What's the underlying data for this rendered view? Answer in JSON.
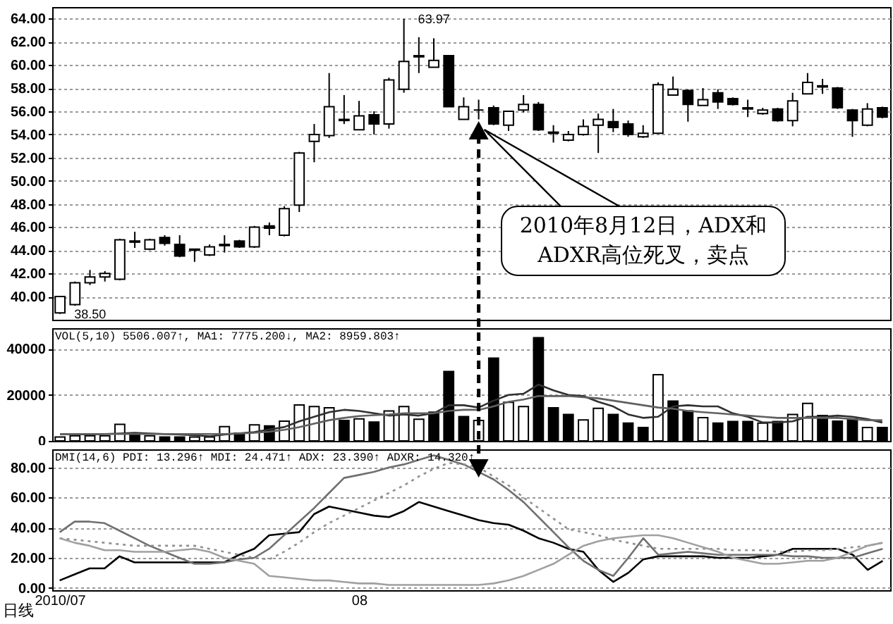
{
  "chart_data": [
    {
      "type": "candlestick",
      "categories": [
        "2010/07",
        null,
        null,
        null,
        null,
        null,
        null,
        null,
        null,
        null,
        null,
        null,
        null,
        null,
        null,
        null,
        null,
        null,
        null,
        null,
        "08",
        null,
        null,
        null,
        null,
        null,
        null,
        null,
        null,
        null,
        null,
        null,
        null,
        null,
        null,
        null,
        null,
        null,
        null,
        null,
        null,
        null,
        null,
        null,
        null,
        null,
        null,
        null,
        null,
        null,
        null,
        null,
        null,
        null,
        null,
        null
      ],
      "ohlc": [
        [
          38.6,
          40.0,
          38.5,
          40.0
        ],
        [
          39.3,
          41.3,
          39.2,
          41.2
        ],
        [
          41.2,
          42.3,
          41.0,
          41.7
        ],
        [
          41.7,
          42.2,
          41.3,
          42.0
        ],
        [
          41.5,
          45.0,
          41.4,
          44.9
        ],
        [
          44.7,
          45.6,
          44.2,
          44.8
        ],
        [
          44.1,
          45.0,
          44.0,
          44.9
        ],
        [
          45.1,
          45.3,
          44.4,
          44.6
        ],
        [
          44.5,
          45.3,
          43.4,
          43.5
        ],
        [
          44.0,
          44.1,
          43.0,
          44.1
        ],
        [
          43.6,
          44.5,
          43.5,
          44.3
        ],
        [
          44.4,
          45.3,
          43.8,
          44.5
        ],
        [
          44.8,
          44.9,
          44.2,
          44.3
        ],
        [
          44.3,
          46.1,
          44.2,
          46.0
        ],
        [
          46.1,
          46.4,
          45.3,
          45.9
        ],
        [
          45.3,
          47.8,
          45.2,
          47.6
        ],
        [
          47.9,
          52.5,
          47.3,
          52.4
        ],
        [
          53.4,
          54.9,
          51.6,
          54.0
        ],
        [
          53.9,
          59.3,
          53.7,
          56.4
        ],
        [
          55.2,
          57.4,
          54.9,
          55.3
        ],
        [
          54.4,
          56.9,
          54.4,
          55.6
        ],
        [
          55.7,
          56.0,
          54.0,
          54.9
        ],
        [
          54.9,
          58.9,
          54.5,
          58.7
        ],
        [
          57.9,
          63.97,
          57.6,
          60.3
        ],
        [
          60.7,
          62.4,
          59.3,
          60.8
        ],
        [
          59.8,
          62.3,
          59.8,
          60.4
        ],
        [
          60.8,
          60.8,
          56.4,
          56.4
        ],
        [
          55.3,
          57.2,
          55.3,
          56.4
        ],
        [
          56.1,
          57.0,
          55.3,
          56.1
        ],
        [
          56.3,
          56.5,
          54.8,
          54.9
        ],
        [
          54.8,
          56.0,
          54.3,
          56.0
        ],
        [
          56.1,
          57.4,
          55.9,
          56.6
        ],
        [
          56.6,
          56.8,
          54.3,
          54.4
        ],
        [
          54.1,
          54.8,
          53.3,
          54.2
        ],
        [
          53.5,
          54.3,
          53.4,
          54.0
        ],
        [
          54.0,
          55.3,
          53.9,
          54.7
        ],
        [
          54.8,
          55.8,
          52.4,
          55.3
        ],
        [
          55.1,
          56.2,
          54.2,
          54.6
        ],
        [
          54.9,
          55.2,
          53.8,
          54.0
        ],
        [
          53.8,
          54.8,
          53.7,
          54.1
        ],
        [
          54.1,
          58.5,
          54.1,
          58.3
        ],
        [
          57.4,
          59.0,
          57.4,
          57.9
        ],
        [
          57.8,
          57.9,
          55.1,
          56.6
        ],
        [
          56.5,
          58.0,
          56.5,
          57.0
        ],
        [
          57.6,
          57.9,
          56.2,
          56.8
        ],
        [
          57.1,
          57.2,
          56.5,
          56.6
        ],
        [
          56.2,
          57.0,
          55.5,
          56.3
        ],
        [
          55.8,
          56.3,
          55.7,
          56.1
        ],
        [
          56.2,
          56.3,
          55.1,
          55.2
        ],
        [
          55.2,
          57.6,
          54.7,
          56.9
        ],
        [
          57.5,
          59.3,
          57.5,
          58.5
        ],
        [
          58.1,
          58.8,
          57.5,
          58.2
        ],
        [
          58.0,
          58.1,
          56.2,
          56.3
        ],
        [
          56.1,
          56.2,
          53.8,
          55.2
        ],
        [
          54.8,
          56.7,
          54.7,
          56.2
        ],
        [
          56.3,
          56.4,
          55.4,
          55.5
        ]
      ],
      "color": "#000000",
      "ylim": [
        38,
        65
      ],
      "yticks": [
        {
          "value": 40,
          "label": "40.00"
        },
        {
          "value": 42,
          "label": "42.00"
        },
        {
          "value": 44,
          "label": "44.00"
        },
        {
          "value": 46,
          "label": "46.00"
        },
        {
          "value": 48,
          "label": "48.00"
        },
        {
          "value": 50,
          "label": "50.00"
        },
        {
          "value": 52,
          "label": "52.00"
        },
        {
          "value": 54,
          "label": "54.00"
        },
        {
          "value": 56,
          "label": "56.00"
        },
        {
          "value": 58,
          "label": "58.00"
        },
        {
          "value": 60,
          "label": "60.00"
        },
        {
          "value": 62,
          "label": "62.00"
        },
        {
          "value": 64,
          "label": "64.00"
        }
      ],
      "grid": "y",
      "tick_labels": "y",
      "annotations": [
        "63.97",
        "38.50",
        "2010年8月12日，ADX和ADXR高位死叉，卖点"
      ]
    },
    {
      "type": "bar",
      "categories": [
        "2010/07",
        null,
        null,
        null,
        null,
        null,
        null,
        null,
        null,
        null,
        null,
        null,
        null,
        null,
        null,
        null,
        null,
        null,
        null,
        null,
        "08",
        null,
        null,
        null,
        null,
        null,
        null,
        null,
        null,
        null,
        null,
        null,
        null,
        null,
        null,
        null,
        null,
        null,
        null,
        null,
        null,
        null,
        null,
        null,
        null,
        null,
        null,
        null,
        null,
        null,
        null,
        null,
        null,
        null,
        null,
        null
      ],
      "series": [
        {
          "type": "bar",
          "values": [
            1700,
            2200,
            2200,
            2200,
            7200,
            3400,
            2200,
            1700,
            1700,
            1700,
            1700,
            6200,
            3400,
            7000,
            6500,
            8600,
            15600,
            14900,
            14400,
            8900,
            9600,
            8200,
            13000,
            14900,
            9400,
            12500,
            30200,
            10600,
            8900,
            36000,
            16800,
            14900,
            44900,
            14400,
            11500,
            9100,
            14200,
            11500,
            7700,
            5800,
            28800,
            17300,
            13000,
            10100,
            7700,
            8400,
            8400,
            7700,
            8400,
            11500,
            16300,
            11000,
            8600,
            9600,
            5800,
            5800
          ],
          "colors": [
            "#ffffff",
            "#ffffff",
            "#ffffff",
            "#ffffff",
            "#ffffff",
            "#000000",
            "#ffffff",
            "#000000",
            "#000000",
            "#ffffff",
            "#ffffff",
            "#ffffff",
            "#000000",
            "#ffffff",
            "#000000",
            "#ffffff",
            "#ffffff",
            "#ffffff",
            "#ffffff",
            "#000000",
            "#ffffff",
            "#000000",
            "#ffffff",
            "#ffffff",
            "#ffffff",
            "#000000",
            "#000000",
            "#000000",
            "#ffffff",
            "#000000",
            "#ffffff",
            "#ffffff",
            "#000000",
            "#000000",
            "#000000",
            "#ffffff",
            "#ffffff",
            "#000000",
            "#000000",
            "#000000",
            "#ffffff",
            "#000000",
            "#000000",
            "#ffffff",
            "#000000",
            "#000000",
            "#000000",
            "#ffffff",
            "#000000",
            "#ffffff",
            "#ffffff",
            "#000000",
            "#000000",
            "#000000",
            "#ffffff",
            "#000000"
          ]
        },
        {
          "type": "line",
          "color": "#303030",
          "values": [
            2900,
            2900,
            2800,
            3000,
            3200,
            3500,
            3200,
            3000,
            2800,
            2500,
            2000,
            2800,
            3300,
            3800,
            5000,
            6000,
            8500,
            10500,
            12500,
            13500,
            13000,
            12000,
            11000,
            11500,
            11000,
            12000,
            15500,
            15500,
            14500,
            17500,
            20000,
            20500,
            24500,
            22000,
            20000,
            19500,
            17000,
            15000,
            11500,
            10000,
            10500,
            15000,
            15500,
            15000,
            15000,
            12000,
            10500,
            8000,
            8000,
            8500,
            10500,
            10500,
            11000,
            10500,
            9500,
            8000
          ]
        },
        {
          "type": "line",
          "color": "#606060",
          "values": [
            3000,
            3000,
            3000,
            3000,
            3000,
            3000,
            3000,
            3000,
            3000,
            3000,
            3000,
            3000,
            3200,
            3500,
            4000,
            4800,
            6000,
            7500,
            9000,
            10000,
            10800,
            11200,
            11500,
            12000,
            12000,
            12000,
            13000,
            13500,
            13500,
            15000,
            17000,
            18000,
            19500,
            19500,
            19500,
            19000,
            18500,
            17500,
            16500,
            15500,
            14500,
            14000,
            13000,
            12500,
            12000,
            11500,
            11000,
            10500,
            10000,
            10000,
            10000,
            10000,
            10000,
            9500,
            9000,
            9000
          ]
        }
      ],
      "ylim": [
        0,
        49000
      ],
      "yticks": [
        0,
        20000,
        40000
      ],
      "grid": "y",
      "tick_labels": "y",
      "annotations": [
        "VOL(5,10) 5506.007↑, MA1: 7775.200↓, MA2: 8959.803↑"
      ]
    },
    {
      "type": "line",
      "categories": [
        "2010/07",
        null,
        null,
        null,
        null,
        null,
        null,
        null,
        null,
        null,
        null,
        null,
        null,
        null,
        null,
        null,
        null,
        null,
        null,
        null,
        "08",
        null,
        null,
        null,
        null,
        null,
        null,
        null,
        null,
        null,
        null,
        null,
        null,
        null,
        null,
        null,
        null,
        null,
        null,
        null,
        null,
        null,
        null,
        null,
        null,
        null,
        null,
        null,
        null,
        null,
        null,
        null,
        null,
        null,
        null,
        null
      ],
      "series": [
        {
          "color": "#000000",
          "values": [
            5,
            9,
            13,
            13,
            21,
            17,
            17,
            17,
            17,
            17,
            17,
            17,
            22,
            26,
            35,
            36,
            37,
            49,
            54,
            52,
            50,
            48,
            47,
            51,
            57,
            54,
            51,
            48,
            45,
            43,
            42,
            38,
            33,
            30,
            26,
            24,
            12,
            4,
            10,
            19,
            21,
            21,
            21,
            21,
            20,
            20,
            20,
            21,
            22,
            26,
            26,
            26,
            26,
            22,
            12,
            18
          ]
        },
        {
          "color": "#707070",
          "values": [
            37,
            44,
            44,
            43,
            38,
            33,
            28,
            24,
            20,
            16,
            16,
            17,
            19,
            20,
            26,
            35,
            44,
            53,
            63,
            73,
            75,
            77,
            80,
            82,
            85,
            88,
            85,
            82,
            77,
            72,
            65,
            57,
            47,
            37,
            27,
            18,
            12,
            8,
            20,
            33,
            22,
            23,
            24,
            23,
            22,
            22,
            22,
            22,
            22,
            21,
            21,
            20,
            20,
            20,
            23,
            26
          ]
        },
        {
          "color": "#909090",
          "line_style": "dotted",
          "values": [
            33,
            32,
            31,
            30,
            29,
            28,
            28,
            28,
            28,
            28,
            26,
            24,
            22,
            20,
            19,
            24,
            30,
            37,
            43,
            48,
            53,
            58,
            63,
            68,
            74,
            79,
            83,
            82,
            80,
            74,
            68,
            60,
            53,
            46,
            39,
            37,
            35,
            32,
            30,
            28,
            26,
            26,
            26,
            26,
            26,
            25,
            25,
            25,
            24,
            24,
            25,
            25,
            26,
            27,
            28,
            30
          ]
        },
        {
          "color": "#a0a0a0",
          "values": [
            33,
            30,
            28,
            25,
            25,
            24,
            24,
            24,
            25,
            26,
            24,
            20,
            18,
            16,
            8,
            7,
            6,
            5,
            5,
            4,
            3,
            3,
            2,
            2,
            2,
            2,
            2,
            2,
            2,
            3,
            5,
            8,
            12,
            16,
            22,
            28,
            31,
            33,
            34,
            35,
            35,
            33,
            30,
            27,
            24,
            20,
            18,
            16,
            16,
            17,
            18,
            18,
            20,
            24,
            28,
            30
          ]
        }
      ],
      "ylim": [
        -1.5,
        92
      ],
      "yticks": [
        {
          "value": 0,
          "label": "0.00"
        },
        {
          "value": 20,
          "label": "20.00"
        },
        {
          "value": 40,
          "label": "40.00"
        },
        {
          "value": 60,
          "label": "60.00"
        },
        {
          "value": 80,
          "label": "80.00"
        }
      ],
      "grid": "y",
      "line_style": "solid",
      "annotations": [
        "DMI(14,6) PDI: 13.296↑ MDI: 24.471↑ ADX: 23.390↑ ADXR: 14.320↑",
        "日线"
      ]
    }
  ]
}
